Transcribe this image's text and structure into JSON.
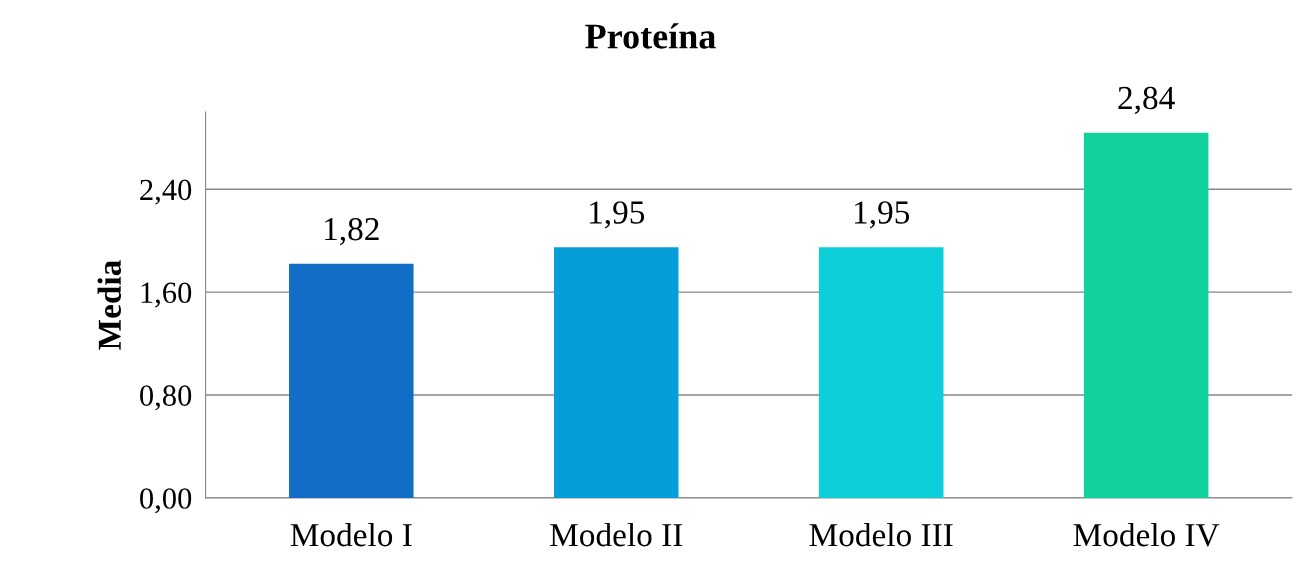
{
  "chart_data": {
    "type": "bar",
    "title": "Proteína",
    "ylabel": "Media",
    "categories": [
      "Modelo I",
      "Modelo II",
      "Modelo III",
      "Modelo IV"
    ],
    "values": [
      1.82,
      1.95,
      1.95,
      2.84
    ],
    "colors": [
      "#116dc6",
      "#059ed8",
      "#0dcfd9",
      "#12d19c"
    ],
    "value_labels": [
      "1,82",
      "1,95",
      "1,95",
      "2,84"
    ],
    "ylim": [
      0,
      3.0
    ],
    "yticks": [
      {
        "value": 0,
        "label": "0,00"
      },
      {
        "value": 0.8,
        "label": "0,80"
      },
      {
        "value": 1.6,
        "label": "1,60"
      },
      {
        "value": 2.4,
        "label": "2,40"
      }
    ],
    "grid": "y"
  }
}
